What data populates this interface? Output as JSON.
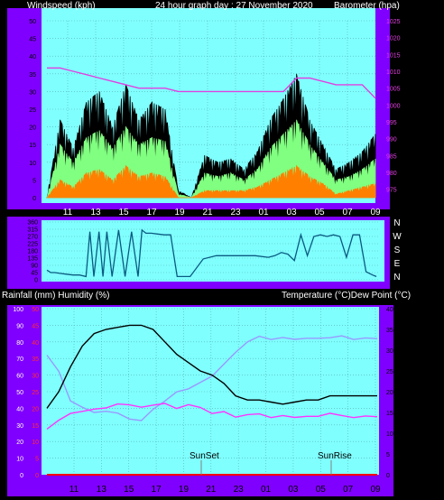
{
  "header": {
    "left": "Windspeed (kph)",
    "center": "24 hour graph day : 27 November 2020",
    "right": "Barometer (hpa)"
  },
  "middle_header": {
    "left": "Rainfall (mm)  Humidity (%)",
    "right": "Temperature (°C)Dew Point (°C)"
  },
  "compass": [
    "N",
    "W",
    "S",
    "E",
    "N"
  ],
  "markers": {
    "sunset": "SunSet",
    "sunrise": "SunRise"
  },
  "colors": {
    "frame": "#8000ff",
    "plot_bg": "#80ffff",
    "wind_gust": "#000000",
    "wind_avg": "#80ff80",
    "wind_low": "#ff8000",
    "barometer": "#e040e0",
    "direction": "#0a5a80",
    "temperature": "#000000",
    "dewpoint": "#ff33ff",
    "humidity": "#9999ff",
    "rainfall": "#ff0000"
  },
  "chart_data": [
    {
      "type": "line",
      "title": "Windspeed (kph) / Barometer (hpa)",
      "xticks": [
        "11",
        "13",
        "15",
        "17",
        "19",
        "21",
        "23",
        "01",
        "03",
        "05",
        "07",
        "09"
      ],
      "y_left": {
        "label": "Windspeed (kph)",
        "range": [
          0,
          50
        ],
        "ticks": [
          "0",
          "5",
          "10",
          "15",
          "20",
          "25",
          "30",
          "35",
          "40",
          "45",
          "50"
        ]
      },
      "y_right": {
        "label": "Barometer (hpa)",
        "range": [
          972.5,
          1025
        ],
        "ticks": [
          "975",
          "980",
          "985",
          "990",
          "995",
          "1000",
          "1005",
          "1010",
          "1015",
          "1020",
          "1025"
        ]
      },
      "hours_from_start": [
        0,
        1,
        2,
        3,
        4,
        5,
        6,
        7,
        8,
        9,
        10,
        11,
        12,
        13,
        14,
        15,
        16,
        17,
        18,
        19,
        20,
        21,
        22,
        23,
        24,
        25
      ],
      "series": [
        {
          "name": "gust",
          "values": [
            0,
            22,
            14,
            27,
            30,
            20,
            32,
            22,
            27,
            25,
            2,
            0,
            12,
            10,
            11,
            8,
            13,
            22,
            28,
            35,
            22,
            15,
            8,
            10,
            13,
            18
          ]
        },
        {
          "name": "average",
          "values": [
            0,
            15,
            10,
            17,
            19,
            14,
            20,
            15,
            17,
            16,
            1,
            0,
            7,
            6,
            7,
            5,
            8,
            14,
            18,
            22,
            15,
            10,
            5,
            6,
            8,
            11
          ]
        },
        {
          "name": "low",
          "values": [
            0,
            5,
            3,
            7,
            8,
            5,
            9,
            6,
            7,
            6,
            0,
            0,
            2,
            2,
            2,
            2,
            3,
            5,
            7,
            9,
            6,
            4,
            1,
            2,
            3,
            4
          ]
        },
        {
          "name": "barometer",
          "values": [
            1011,
            1011,
            1010,
            1009,
            1008,
            1007,
            1006,
            1005,
            1005,
            1005,
            1004,
            1004,
            1004,
            1004,
            1004,
            1004,
            1004,
            1004,
            1004,
            1008,
            1008,
            1007,
            1006,
            1006,
            1006,
            1002
          ]
        }
      ]
    },
    {
      "type": "line",
      "title": "Wind direction",
      "y_ticks": [
        "0",
        "45",
        "90",
        "135",
        "180",
        "225",
        "270",
        "315",
        "360"
      ],
      "range": [
        0,
        360
      ],
      "hours_from_start": [
        0,
        0.3,
        0.6,
        1,
        1.5,
        2,
        2.5,
        3,
        3.3,
        3.6,
        4,
        4.3,
        4.6,
        5,
        5.5,
        6,
        6.5,
        7,
        7.3,
        7.6,
        8,
        8.5,
        9,
        9.5,
        10,
        11,
        12,
        13,
        14,
        15,
        16,
        17,
        17.5,
        18,
        18.5,
        19,
        19.5,
        20,
        20.5,
        21,
        21.5,
        22,
        22.5,
        23,
        23.5,
        24,
        24.5,
        25,
        25.3
      ],
      "values": [
        60,
        45,
        45,
        40,
        35,
        30,
        30,
        20,
        300,
        20,
        300,
        20,
        300,
        20,
        310,
        20,
        300,
        20,
        310,
        290,
        290,
        285,
        280,
        280,
        20,
        20,
        130,
        150,
        150,
        150,
        150,
        140,
        150,
        170,
        160,
        120,
        280,
        150,
        270,
        280,
        270,
        280,
        270,
        140,
        280,
        280,
        50,
        30,
        20
      ]
    },
    {
      "type": "line",
      "title": "Rainfall / Humidity / Temperature / Dew Point",
      "xticks": [
        "11",
        "13",
        "15",
        "17",
        "19",
        "21",
        "23",
        "01",
        "03",
        "05",
        "07",
        "09"
      ],
      "y_left": {
        "label": "Rainfall (mm)  Humidity (%)",
        "range": [
          0,
          100
        ],
        "ticks": [
          "0",
          "10",
          "20",
          "30",
          "40",
          "50",
          "60",
          "70",
          "80",
          "90",
          "100"
        ]
      },
      "y_left_red": {
        "label": "Rainfall (mm)",
        "range": [
          0,
          50
        ],
        "ticks": [
          "0",
          "5",
          "10",
          "15",
          "20",
          "25",
          "30",
          "35",
          "40",
          "45",
          "50"
        ]
      },
      "y_right": {
        "label": "Temperature (°C)Dew Point (°C)",
        "range": [
          0,
          40
        ],
        "ticks": [
          "0",
          "5",
          "10",
          "15",
          "20",
          "25",
          "30",
          "35",
          "40"
        ]
      },
      "hours_from_start": [
        0,
        1,
        2,
        3,
        4,
        5,
        6,
        7,
        8,
        9,
        10,
        11,
        12,
        13,
        14,
        15,
        16,
        17,
        18,
        19,
        20,
        21,
        22,
        23,
        24,
        25,
        26,
        27,
        28
      ],
      "series": [
        {
          "name": "temperature",
          "values": [
            16,
            20,
            26,
            31,
            34,
            35,
            35.5,
            36,
            36,
            35,
            32,
            29,
            27,
            25,
            24,
            22,
            19,
            18,
            18,
            17.5,
            17,
            17.5,
            18,
            18,
            19,
            19,
            19,
            19,
            19
          ]
        },
        {
          "name": "dewpoint",
          "values": [
            11,
            13,
            15,
            15,
            16,
            16,
            17,
            17,
            16,
            17,
            17,
            16,
            17,
            16,
            15,
            15,
            14,
            14.5,
            14.5,
            14,
            14,
            14,
            14,
            14,
            15,
            14,
            14,
            14,
            14
          ]
        },
        {
          "name": "humidity",
          "values": [
            72,
            62,
            45,
            40,
            38,
            38,
            37,
            34,
            32,
            40,
            44,
            50,
            52,
            55,
            60,
            66,
            74,
            80,
            83,
            82,
            82,
            82,
            82,
            82,
            83,
            83,
            82,
            82,
            82
          ]
        },
        {
          "name": "rainfall",
          "values": [
            0,
            0,
            0,
            0,
            0,
            0,
            0,
            0,
            0,
            0,
            0,
            0,
            0,
            0,
            0,
            0,
            0,
            0,
            0,
            0,
            0,
            0,
            0,
            0,
            0,
            0,
            0,
            0,
            0
          ]
        }
      ]
    }
  ]
}
